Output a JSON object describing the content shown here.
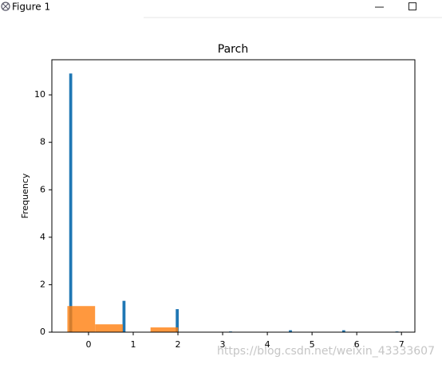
{
  "window": {
    "title": "Figure 1"
  },
  "watermark": "https://blog.csdn.net/weixin_43333607",
  "chart_data": {
    "type": "histogram",
    "title": "Parch",
    "ylabel": "Frequency",
    "xlim": [
      -0.82,
      7.3
    ],
    "ylim": [
      0,
      11.48
    ],
    "xticks": [
      0,
      1,
      2,
      3,
      4,
      5,
      6,
      7
    ],
    "yticks": [
      0,
      2,
      4,
      6,
      8,
      10
    ],
    "grid": false,
    "series": [
      {
        "color": "#1f77b4",
        "alpha": 1,
        "rwidth": 0.45,
        "bins": [
          -0.473,
          -0.324,
          -0.175,
          -0.026,
          0.123,
          0.272,
          0.421,
          0.57,
          0.719,
          0.868,
          1.016,
          1.165,
          1.314,
          1.463,
          1.612,
          1.761,
          1.91,
          2.059,
          2.208,
          2.357,
          2.506,
          2.655,
          2.804,
          2.953,
          3.102,
          3.251,
          3.4,
          3.549,
          3.698,
          3.846,
          3.995,
          4.144,
          4.293,
          4.442,
          4.591,
          4.74,
          4.889,
          5.038,
          5.187,
          5.336,
          5.485,
          5.634,
          5.783,
          5.932,
          6.081,
          6.23,
          6.379,
          6.528,
          6.676,
          6.825,
          6.974
        ],
        "values": [
          10.9,
          0,
          0,
          0,
          0,
          0,
          0,
          0,
          1.32,
          0,
          0,
          0,
          0,
          0,
          0,
          0,
          0.97,
          0,
          0,
          0,
          0,
          0,
          0,
          0,
          0.03,
          0,
          0,
          0,
          0,
          0,
          0,
          0,
          0,
          0.08,
          0,
          0,
          0,
          0,
          0,
          0,
          0,
          0.08,
          0,
          0,
          0,
          0,
          0,
          0,
          0,
          0.03
        ]
      },
      {
        "color": "#ff7f0e",
        "alpha": 0.8,
        "rwidth": 1,
        "bins": [
          -0.473,
          0.147,
          0.767,
          1.387,
          2.007,
          2.627,
          3.247,
          3.867,
          4.487,
          5.107,
          5.727,
          6.347,
          6.967
        ],
        "values": [
          1.1,
          0.33,
          0,
          0.2,
          0,
          0,
          0,
          0,
          0,
          0,
          0,
          0
        ]
      }
    ]
  }
}
